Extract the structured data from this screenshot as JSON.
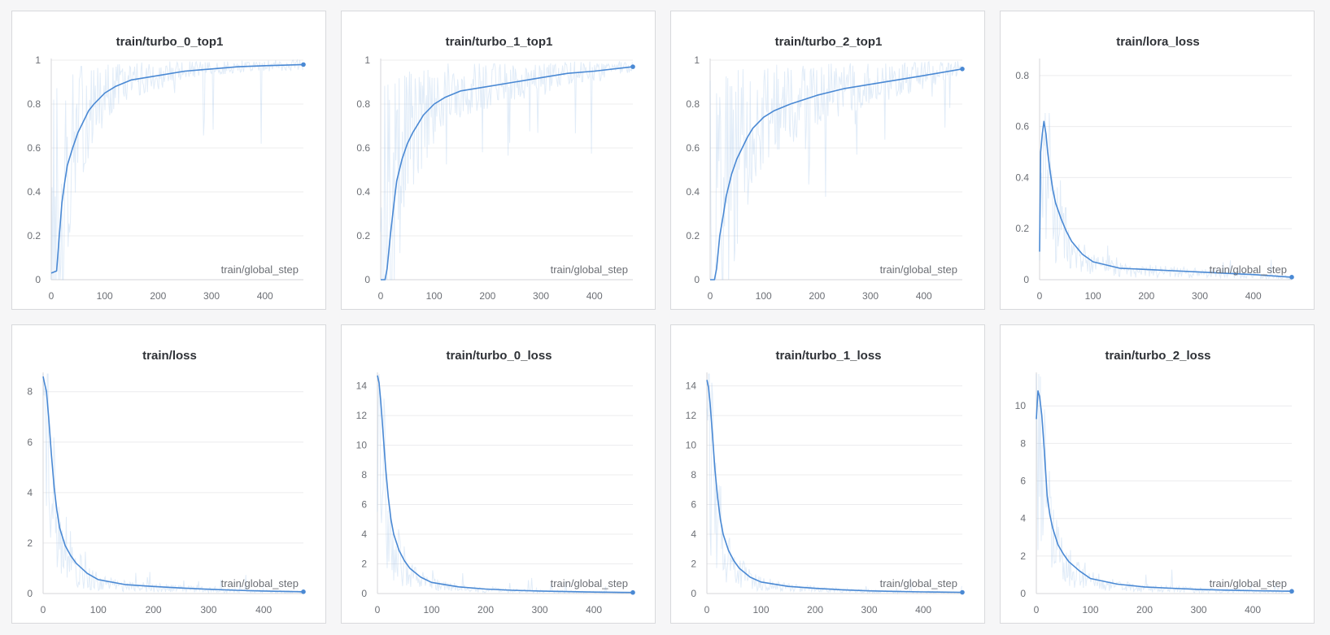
{
  "colors": {
    "line": "#4a89d4",
    "raw": "#aac8ea",
    "grid": "#ececee"
  },
  "chart_data": [
    {
      "type": "line",
      "title": "train/turbo_0_top1",
      "xlabel": "train/global_step",
      "xlim": [
        0,
        472
      ],
      "ylim": [
        0,
        1
      ],
      "xticks": [
        0,
        100,
        200,
        300,
        400
      ],
      "yticks": [
        0,
        0.2,
        0.4,
        0.6,
        0.8,
        1
      ],
      "ytick_labels": [
        "0",
        "0.2",
        "0.4",
        "0.6",
        "0.8",
        "1"
      ],
      "series": [
        {
          "name": "smoothed",
          "x": [
            0,
            10,
            15,
            20,
            25,
            30,
            40,
            50,
            60,
            70,
            80,
            100,
            120,
            150,
            200,
            250,
            300,
            350,
            400,
            472
          ],
          "y": [
            0.03,
            0.04,
            0.2,
            0.35,
            0.44,
            0.52,
            0.6,
            0.67,
            0.72,
            0.77,
            0.8,
            0.85,
            0.88,
            0.91,
            0.93,
            0.95,
            0.96,
            0.97,
            0.975,
            0.98
          ]
        }
      ]
    },
    {
      "type": "line",
      "title": "train/turbo_1_top1",
      "xlabel": "train/global_step",
      "xlim": [
        0,
        472
      ],
      "ylim": [
        0,
        1
      ],
      "xticks": [
        0,
        100,
        200,
        300,
        400
      ],
      "yticks": [
        0,
        0.2,
        0.4,
        0.6,
        0.8,
        1
      ],
      "ytick_labels": [
        "0",
        "0.2",
        "0.4",
        "0.6",
        "0.8",
        "1"
      ],
      "series": [
        {
          "name": "smoothed",
          "x": [
            0,
            8,
            12,
            18,
            25,
            30,
            40,
            50,
            60,
            70,
            80,
            100,
            120,
            150,
            200,
            250,
            300,
            350,
            400,
            472
          ],
          "y": [
            0,
            0,
            0.05,
            0.2,
            0.35,
            0.45,
            0.55,
            0.62,
            0.67,
            0.71,
            0.75,
            0.8,
            0.83,
            0.86,
            0.88,
            0.9,
            0.92,
            0.94,
            0.95,
            0.97
          ]
        }
      ]
    },
    {
      "type": "line",
      "title": "train/turbo_2_top1",
      "xlabel": "train/global_step",
      "xlim": [
        0,
        472
      ],
      "ylim": [
        0,
        1
      ],
      "xticks": [
        0,
        100,
        200,
        300,
        400
      ],
      "yticks": [
        0,
        0.2,
        0.4,
        0.6,
        0.8,
        1
      ],
      "ytick_labels": [
        "0",
        "0.2",
        "0.4",
        "0.6",
        "0.8",
        "1"
      ],
      "series": [
        {
          "name": "smoothed",
          "x": [
            0,
            8,
            12,
            18,
            25,
            30,
            40,
            50,
            60,
            70,
            80,
            100,
            120,
            150,
            200,
            250,
            300,
            350,
            400,
            472
          ],
          "y": [
            0,
            0,
            0.05,
            0.2,
            0.3,
            0.38,
            0.48,
            0.55,
            0.6,
            0.65,
            0.69,
            0.74,
            0.77,
            0.8,
            0.84,
            0.87,
            0.89,
            0.91,
            0.93,
            0.96
          ]
        }
      ]
    },
    {
      "type": "line",
      "title": "train/lora_loss",
      "xlabel": "train/global_step",
      "xlim": [
        0,
        472
      ],
      "ylim": [
        0,
        0.86
      ],
      "xticks": [
        0,
        100,
        200,
        300,
        400
      ],
      "yticks": [
        0,
        0.2,
        0.4,
        0.6,
        0.8
      ],
      "ytick_labels": [
        "0",
        "0.2",
        "0.4",
        "0.6",
        "0.8"
      ],
      "series": [
        {
          "name": "smoothed",
          "x": [
            0,
            2,
            5,
            8,
            12,
            15,
            20,
            25,
            30,
            40,
            50,
            60,
            80,
            100,
            150,
            200,
            250,
            300,
            350,
            400,
            472
          ],
          "y": [
            0.11,
            0.5,
            0.57,
            0.62,
            0.57,
            0.5,
            0.42,
            0.35,
            0.3,
            0.24,
            0.19,
            0.15,
            0.1,
            0.07,
            0.045,
            0.04,
            0.035,
            0.03,
            0.025,
            0.02,
            0.01
          ]
        }
      ]
    },
    {
      "type": "line",
      "title": "train/loss",
      "xlabel": "train/global_step",
      "xlim": [
        0,
        472
      ],
      "ylim": [
        0,
        8.7
      ],
      "xticks": [
        0,
        100,
        200,
        300,
        400
      ],
      "yticks": [
        0,
        2,
        4,
        6,
        8
      ],
      "ytick_labels": [
        "0",
        "2",
        "4",
        "6",
        "8"
      ],
      "series": [
        {
          "name": "smoothed",
          "x": [
            0,
            3,
            6,
            10,
            15,
            20,
            25,
            30,
            40,
            50,
            60,
            80,
            100,
            150,
            200,
            250,
            300,
            350,
            400,
            472
          ],
          "y": [
            8.6,
            8.3,
            8.0,
            7.0,
            5.5,
            4.2,
            3.3,
            2.6,
            1.9,
            1.5,
            1.2,
            0.8,
            0.55,
            0.35,
            0.28,
            0.22,
            0.17,
            0.13,
            0.1,
            0.07
          ]
        }
      ]
    },
    {
      "type": "line",
      "title": "train/turbo_0_loss",
      "xlabel": "train/global_step",
      "xlim": [
        0,
        472
      ],
      "ylim": [
        0,
        14.8
      ],
      "xticks": [
        0,
        100,
        200,
        300,
        400
      ],
      "yticks": [
        0,
        2,
        4,
        6,
        8,
        10,
        12,
        14
      ],
      "ytick_labels": [
        "0",
        "2",
        "4",
        "6",
        "8",
        "10",
        "12",
        "14"
      ],
      "series": [
        {
          "name": "smoothed",
          "x": [
            0,
            3,
            6,
            10,
            15,
            20,
            25,
            30,
            40,
            50,
            60,
            80,
            100,
            150,
            200,
            250,
            300,
            350,
            400,
            472
          ],
          "y": [
            14.7,
            14.2,
            13.0,
            11.0,
            8.5,
            6.5,
            5.0,
            4.0,
            2.9,
            2.2,
            1.7,
            1.1,
            0.75,
            0.45,
            0.3,
            0.22,
            0.17,
            0.13,
            0.1,
            0.07
          ]
        }
      ]
    },
    {
      "type": "line",
      "title": "train/turbo_1_loss",
      "xlabel": "train/global_step",
      "xlim": [
        0,
        472
      ],
      "ylim": [
        0,
        14.8
      ],
      "xticks": [
        0,
        100,
        200,
        300,
        400
      ],
      "yticks": [
        0,
        2,
        4,
        6,
        8,
        10,
        12,
        14
      ],
      "ytick_labels": [
        "0",
        "2",
        "4",
        "6",
        "8",
        "10",
        "12",
        "14"
      ],
      "series": [
        {
          "name": "smoothed",
          "x": [
            0,
            3,
            6,
            10,
            15,
            20,
            25,
            30,
            40,
            50,
            60,
            80,
            100,
            150,
            200,
            250,
            300,
            350,
            400,
            472
          ],
          "y": [
            14.4,
            13.9,
            12.8,
            10.8,
            8.3,
            6.4,
            5.0,
            4.0,
            2.9,
            2.2,
            1.7,
            1.1,
            0.78,
            0.48,
            0.35,
            0.25,
            0.18,
            0.14,
            0.11,
            0.08
          ]
        }
      ]
    },
    {
      "type": "line",
      "title": "train/turbo_2_loss",
      "xlabel": "train/global_step",
      "xlim": [
        0,
        472
      ],
      "ylim": [
        0,
        11.7
      ],
      "xticks": [
        0,
        100,
        200,
        300,
        400
      ],
      "yticks": [
        0,
        2,
        4,
        6,
        8,
        10
      ],
      "ytick_labels": [
        "0",
        "2",
        "4",
        "6",
        "8",
        "10"
      ],
      "series": [
        {
          "name": "smoothed",
          "x": [
            0,
            3,
            6,
            10,
            15,
            20,
            25,
            30,
            40,
            50,
            60,
            80,
            100,
            150,
            200,
            250,
            300,
            350,
            400,
            472
          ],
          "y": [
            9.3,
            10.8,
            10.5,
            9.5,
            7.5,
            5.2,
            4.2,
            3.5,
            2.6,
            2.1,
            1.7,
            1.2,
            0.8,
            0.5,
            0.35,
            0.28,
            0.22,
            0.18,
            0.15,
            0.12
          ]
        }
      ]
    }
  ]
}
